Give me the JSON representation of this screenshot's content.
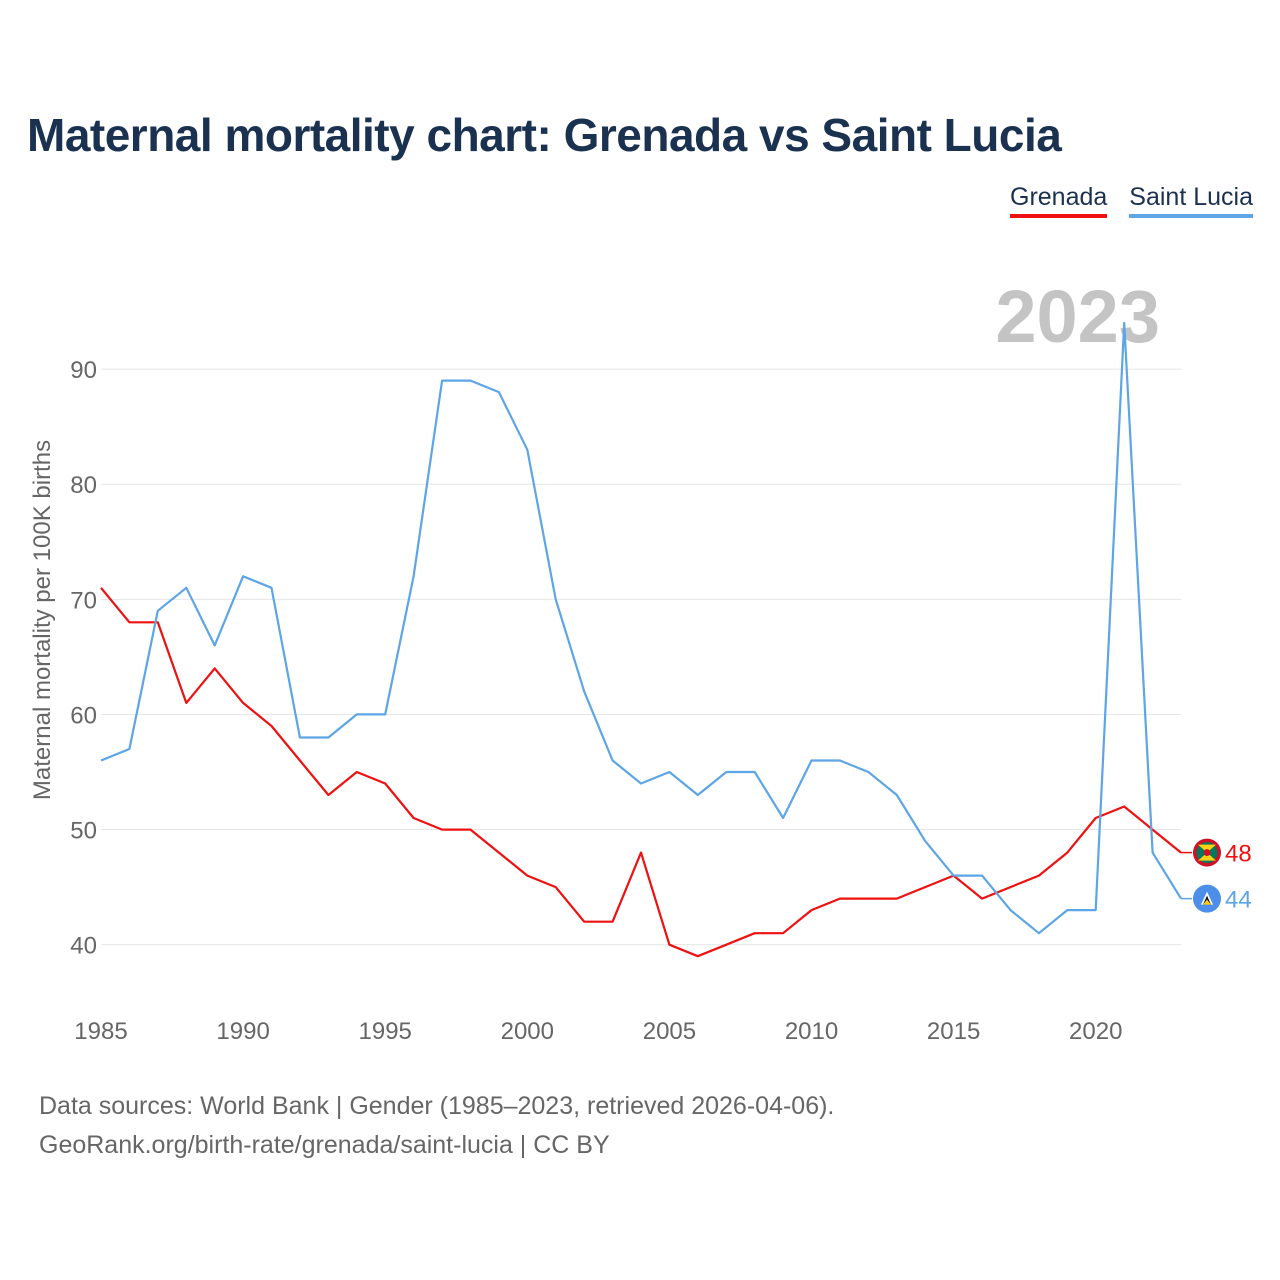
{
  "title": "Maternal mortality chart: Grenada vs Saint Lucia",
  "legend": {
    "grenada": "Grenada",
    "saint_lucia": "Saint Lucia"
  },
  "colors": {
    "grenada": "#ee1111",
    "saint_lucia": "#5da5e6",
    "title": "#1b3150"
  },
  "footer": {
    "line1": "Data sources: World Bank | Gender (1985–2023, retrieved 2026-04-06).",
    "line2": "GeoRank.org/birth-rate/grenada/saint-lucia | CC BY"
  },
  "chart_data": {
    "type": "line",
    "title": "Maternal mortality chart: Grenada vs Saint Lucia",
    "xlabel": "",
    "ylabel": "Maternal mortality per 100K births",
    "year_watermark": "2023",
    "xlim": [
      1985,
      2023
    ],
    "ylim": [
      34.5,
      96
    ],
    "x_ticks": [
      1985,
      1990,
      1995,
      2000,
      2005,
      2010,
      2015,
      2020
    ],
    "y_ticks": [
      40,
      50,
      60,
      70,
      80,
      90
    ],
    "grid": true,
    "x": [
      1985,
      1986,
      1987,
      1988,
      1989,
      1990,
      1991,
      1992,
      1993,
      1994,
      1995,
      1996,
      1997,
      1998,
      1999,
      2000,
      2001,
      2002,
      2003,
      2004,
      2005,
      2006,
      2007,
      2008,
      2009,
      2010,
      2011,
      2012,
      2013,
      2014,
      2015,
      2016,
      2017,
      2018,
      2019,
      2020,
      2021,
      2022,
      2023
    ],
    "series": [
      {
        "name": "Grenada",
        "end_label": "48",
        "values": [
          71,
          68,
          68,
          61,
          64,
          61,
          59,
          56,
          53,
          55,
          54,
          51,
          50,
          50,
          48,
          46,
          45,
          42,
          42,
          48,
          40,
          39,
          40,
          41,
          41,
          43,
          44,
          44,
          44,
          45,
          46,
          44,
          45,
          46,
          48,
          51,
          52,
          50,
          48
        ]
      },
      {
        "name": "Saint Lucia",
        "end_label": "44",
        "values": [
          56,
          57,
          69,
          71,
          66,
          72,
          71,
          58,
          58,
          60,
          60,
          72,
          89,
          89,
          88,
          83,
          70,
          62,
          56,
          54,
          55,
          53,
          55,
          55,
          51,
          56,
          56,
          55,
          53,
          49,
          46,
          46,
          43,
          41,
          43,
          43,
          94,
          48,
          44
        ]
      }
    ]
  }
}
